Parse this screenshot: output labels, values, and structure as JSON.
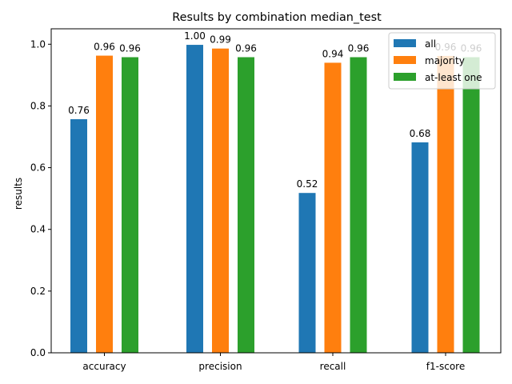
{
  "chart_data": {
    "type": "bar",
    "title": "Results by combination median_test",
    "xlabel": "",
    "ylabel": "results",
    "categories": [
      "accuracy",
      "precision",
      "recall",
      "f1-score"
    ],
    "ylim": [
      0,
      1.05
    ],
    "yticks": [
      "0.0",
      "0.2",
      "0.4",
      "0.6",
      "0.8",
      "1.0"
    ],
    "series": [
      {
        "name": "all",
        "color": "#1f77b4",
        "values": [
          0.757,
          0.998,
          0.518,
          0.682
        ],
        "labels": [
          "0.76",
          "1.00",
          "0.52",
          "0.68"
        ]
      },
      {
        "name": "majority",
        "color": "#ff7f0e",
        "values": [
          0.963,
          0.986,
          0.94,
          0.962
        ],
        "labels": [
          "0.96",
          "0.99",
          "0.94",
          "0.96"
        ]
      },
      {
        "name": "at-least one",
        "color": "#2ca02c",
        "values": [
          0.958,
          0.958,
          0.958,
          0.958
        ],
        "labels": [
          "0.96",
          "0.96",
          "0.96",
          "0.96"
        ]
      }
    ],
    "legend_position": "top-right",
    "grid": false
  }
}
